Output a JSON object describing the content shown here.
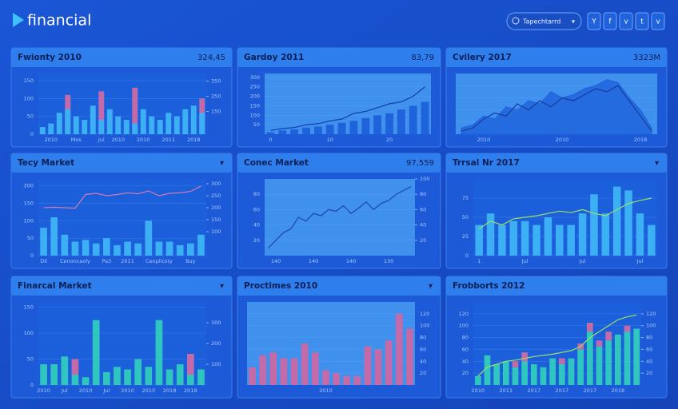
{
  "header": {
    "logo": "financial",
    "search": "Tapechtarrd",
    "icons": [
      "Y",
      "f",
      "v",
      "t",
      "v"
    ]
  },
  "panels": [
    {
      "title": "Fwionty 2010",
      "value": "324,45",
      "chart_data": {
        "type": "bar",
        "plot_color": "#1d5fdc",
        "ylim": [
          0,
          170
        ],
        "yticks": [
          0,
          50,
          100,
          150
        ],
        "y2lim": [
          0,
          400
        ],
        "y2ticks": [
          150,
          250,
          350
        ],
        "grid": true,
        "categories": [
          null,
          "2010",
          null,
          null,
          "Mos",
          null,
          null,
          "Jul",
          null,
          "2010",
          null,
          null,
          "2010",
          null,
          null,
          "2011",
          null,
          null,
          "2018",
          null
        ],
        "series": [
          {
            "type": "bar",
            "color": "#c46aa8",
            "values": [
              null,
              null,
              null,
              110,
              null,
              null,
              null,
              120,
              null,
              null,
              null,
              130,
              null,
              null,
              null,
              null,
              null,
              null,
              null,
              100
            ]
          },
          {
            "type": "bar",
            "color": "#3db0f5",
            "values": [
              20,
              30,
              60,
              70,
              50,
              40,
              80,
              40,
              70,
              50,
              40,
              30,
              70,
              50,
              40,
              60,
              50,
              70,
              80,
              60
            ]
          }
        ]
      }
    },
    {
      "title": "Gardoy 2011",
      "value": "83,79",
      "chart_data": {
        "type": "bar",
        "plot_color": "#4596f0",
        "ylim": [
          0,
          320
        ],
        "yticks": [
          50,
          100,
          150,
          200,
          250,
          300
        ],
        "grid": true,
        "categories": [
          "0",
          null,
          null,
          null,
          null,
          "10",
          null,
          null,
          null,
          null,
          "20",
          null,
          null,
          null
        ],
        "series": [
          {
            "type": "bar",
            "color": "#1e62dc",
            "values": [
              10,
              20,
              25,
              35,
              40,
              50,
              60,
              70,
              85,
              100,
              110,
              130,
              150,
              170
            ]
          },
          {
            "type": "line",
            "color": "#1040b0",
            "values": [
              20,
              30,
              35,
              50,
              55,
              70,
              80,
              110,
              120,
              140,
              160,
              170,
              200,
              250
            ]
          }
        ]
      }
    },
    {
      "title": "Cvilery 2017",
      "value": "3323M",
      "chart_data": {
        "type": "area",
        "plot_color": "#4596f0",
        "ylim": [
          0,
          100
        ],
        "grid": true,
        "categories": [
          null,
          null,
          "2010",
          null,
          null,
          null,
          null,
          null,
          null,
          "2010",
          null,
          null,
          null,
          null,
          null,
          null,
          "2018",
          null
        ],
        "series": [
          {
            "type": "area",
            "color": "#1e62dc",
            "values": [
              10,
              15,
              30,
              25,
              45,
              40,
              55,
              50,
              70,
              60,
              65,
              75,
              80,
              90,
              85,
              60,
              40,
              10
            ]
          },
          {
            "type": "line",
            "color": "#1a3a9a",
            "values": [
              5,
              10,
              25,
              35,
              30,
              50,
              40,
              55,
              45,
              60,
              55,
              65,
              75,
              70,
              80,
              55,
              30,
              5
            ]
          }
        ]
      }
    },
    {
      "title": "Tecy Market",
      "caret": "▾",
      "chart_data": {
        "type": "bar",
        "plot_color": "#1d5fdc",
        "ylim": [
          0,
          220
        ],
        "yticks": [
          0,
          50,
          100,
          150,
          200
        ],
        "y2lim": [
          0,
          320
        ],
        "y2ticks": [
          100,
          150,
          200,
          250,
          300
        ],
        "grid": true,
        "categories": [
          "Dil",
          null,
          null,
          "Cenoncaoly",
          null,
          null,
          "Pa3",
          null,
          "2011",
          null,
          null,
          "Cenplicsty",
          null,
          null,
          "Buy",
          null
        ],
        "series": [
          {
            "type": "bar",
            "color": "#3db0f5",
            "values": [
              80,
              110,
              60,
              40,
              45,
              35,
              50,
              30,
              40,
              35,
              100,
              40,
              40,
              30,
              35,
              60
            ]
          },
          {
            "type": "line",
            "color": "#d07ab8",
            "axis": "y2",
            "values": [
              200,
              202,
              200,
              198,
              255,
              260,
              250,
              255,
              262,
              258,
              270,
              250,
              260,
              262,
              268,
              290
            ]
          }
        ]
      }
    },
    {
      "title": "Conec Market",
      "value": "97,559",
      "chart_data": {
        "type": "line",
        "plot_color": "#4596f0",
        "ylim": [
          0,
          100
        ],
        "yticks": [
          20,
          40,
          60,
          80
        ],
        "y2lim": [
          0,
          100
        ],
        "y2ticks": [
          20,
          40,
          60,
          80,
          100
        ],
        "grid": true,
        "categories": [
          null,
          "140",
          null,
          null,
          null,
          null,
          "140",
          null,
          null,
          null,
          null,
          "140",
          null,
          null,
          null,
          null,
          "130",
          null,
          null,
          null
        ],
        "series": [
          {
            "type": "line",
            "color": "#1a46b8",
            "values": [
              10,
              20,
              30,
              35,
              50,
              45,
              55,
              52,
              60,
              58,
              65,
              55,
              62,
              70,
              60,
              68,
              72,
              80,
              85,
              90
            ]
          }
        ]
      }
    },
    {
      "title": "Trrsal Nr 2017",
      "caret": "▾",
      "chart_data": {
        "type": "bar",
        "plot_color": "#1d5fdc",
        "ylim": [
          0,
          100
        ],
        "yticks": [
          0,
          25,
          50,
          75
        ],
        "grid": true,
        "categories": [
          "1",
          null,
          null,
          null,
          "Jul",
          null,
          null,
          null,
          null,
          "Jul",
          null,
          null,
          null,
          null,
          "Jul",
          null
        ],
        "series": [
          {
            "type": "bar",
            "color": "#3db0f5",
            "values": [
              40,
              55,
              40,
              45,
              45,
              40,
              50,
              40,
              40,
              55,
              80,
              55,
              90,
              85,
              55,
              40
            ]
          },
          {
            "type": "line",
            "color": "#9adf6a",
            "values": [
              35,
              45,
              40,
              48,
              50,
              52,
              55,
              58,
              56,
              60,
              55,
              52,
              60,
              68,
              72,
              75
            ]
          }
        ]
      }
    },
    {
      "title": "Finarcal Market",
      "caret": "▾",
      "chart_data": {
        "type": "bar",
        "stacked": true,
        "plot_color": "#1d5fdc",
        "ylim": [
          0,
          160
        ],
        "yticks": [
          0,
          50,
          100,
          150
        ],
        "y2lim": [
          0,
          400
        ],
        "y2ticks": [
          100,
          200,
          300
        ],
        "grid": true,
        "categories": [
          "2010",
          null,
          "Jul",
          null,
          "2010",
          null,
          "Jul",
          null,
          "2010",
          null,
          "2010",
          null,
          "2018",
          null,
          "2018",
          null
        ],
        "series": [
          {
            "type": "bar",
            "color": "#2fc6c0",
            "values": [
              40,
              40,
              55,
              20,
              15,
              125,
              25,
              35,
              30,
              50,
              35,
              125,
              30,
              40,
              20,
              30
            ]
          },
          {
            "type": "bar",
            "color": "#c46aa8",
            "values": [
              null,
              null,
              null,
              30,
              null,
              null,
              null,
              null,
              null,
              null,
              null,
              null,
              null,
              null,
              40,
              null
            ]
          }
        ]
      }
    },
    {
      "title": "Proctimes 2010",
      "caret": "▾",
      "chart_data": {
        "type": "bar",
        "plot_color": "#4596f0",
        "yaxis_side": "right",
        "ylim": [
          0,
          140
        ],
        "yticks": [
          20,
          40,
          60,
          80,
          100,
          120
        ],
        "grid": true,
        "categories": [
          null,
          null,
          null,
          null,
          null,
          null,
          null,
          "2010",
          null,
          null,
          null,
          null,
          null,
          null,
          null,
          null
        ],
        "series": [
          {
            "type": "bar",
            "color": "#c46aa8",
            "values": [
              30,
              50,
              55,
              45,
              45,
              70,
              55,
              25,
              20,
              15,
              15,
              65,
              60,
              75,
              120,
              95
            ]
          }
        ]
      }
    },
    {
      "title": "Frobborts 2012",
      "chart_data": {
        "type": "bar",
        "stacked": true,
        "plot_color": "#1d5fdc",
        "ylim": [
          0,
          140
        ],
        "yticks": [
          20,
          40,
          60,
          80,
          100,
          120
        ],
        "y2lim": [
          0,
          140
        ],
        "y2ticks": [
          20,
          40,
          60,
          80,
          100,
          120
        ],
        "grid": true,
        "categories": [
          "2010",
          null,
          null,
          "2011",
          null,
          null,
          "2017",
          null,
          null,
          "2017",
          null,
          null,
          "2017",
          null,
          null,
          "2018",
          null,
          null
        ],
        "series": [
          {
            "type": "bar",
            "color": "#2fc6c0",
            "values": [
              15,
              50,
              35,
              40,
              30,
              40,
              35,
              30,
              45,
              35,
              45,
              60,
              90,
              65,
              75,
              85,
              90,
              95
            ]
          },
          {
            "type": "bar",
            "color": "#c46aa8",
            "values": [
              null,
              null,
              null,
              null,
              10,
              15,
              null,
              null,
              null,
              10,
              null,
              10,
              15,
              10,
              15,
              null,
              10,
              null
            ]
          },
          {
            "type": "line",
            "color": "#9adf6a",
            "axis": "y2",
            "values": [
              15,
              30,
              35,
              40,
              42,
              45,
              48,
              50,
              52,
              55,
              58,
              65,
              80,
              90,
              100,
              110,
              115,
              118
            ]
          }
        ]
      }
    }
  ]
}
